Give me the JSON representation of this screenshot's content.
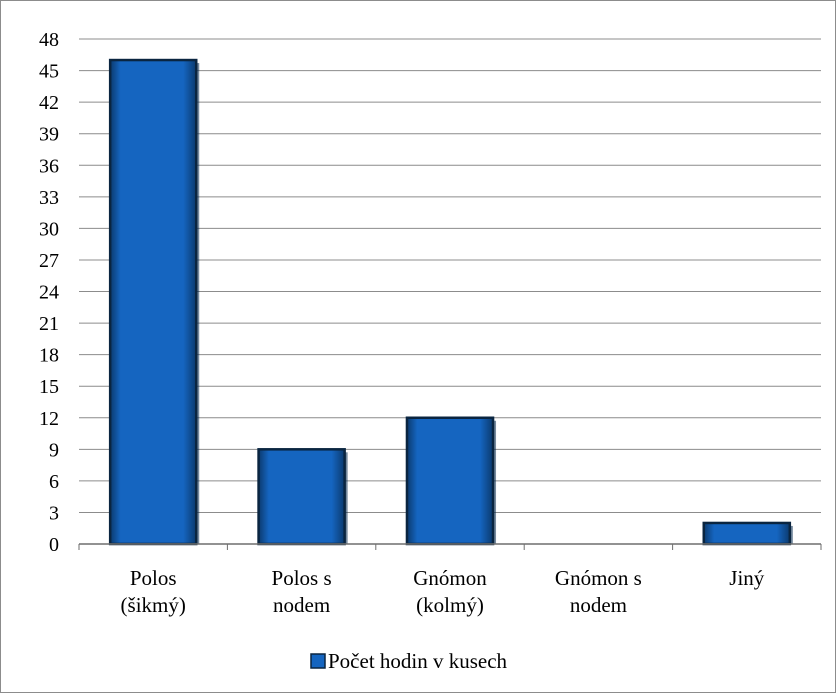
{
  "chart_data": {
    "type": "bar",
    "categories": [
      [
        "Polos",
        "(šikmý)"
      ],
      [
        "Polos s",
        "nodem"
      ],
      [
        "Gnómon",
        "(kolmý)"
      ],
      [
        "Gnómon s",
        "nodem"
      ],
      [
        "Jiný"
      ]
    ],
    "series": [
      {
        "name": "Počet hodin v kusech",
        "values": [
          46,
          9,
          12,
          0,
          2
        ]
      }
    ],
    "yticks": [
      0,
      3,
      6,
      9,
      12,
      15,
      18,
      21,
      24,
      27,
      30,
      33,
      36,
      39,
      42,
      45,
      48
    ],
    "ylim": [
      0,
      48
    ],
    "grid": true,
    "legend_position": "bottom",
    "colors": {
      "bar_fill": "#1565c0",
      "bar_edge": "#0a2540",
      "bar_shadow": "#062a4f",
      "grid": "#8c8c8c",
      "axis": "#6e6e6e"
    }
  }
}
